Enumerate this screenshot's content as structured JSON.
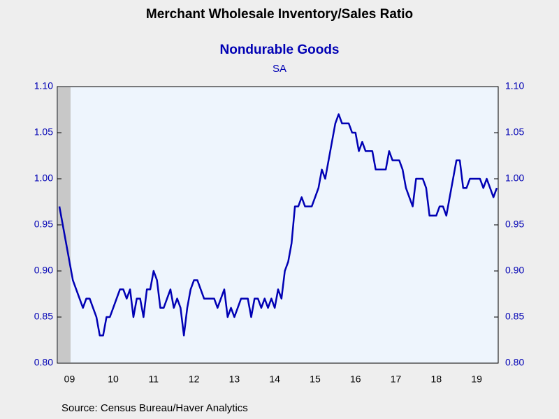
{
  "chart_data": {
    "type": "line",
    "title": "Merchant Wholesale Inventory/Sales Ratio",
    "subtitle": "Nondurable Goods",
    "note": "SA",
    "source": "Source:  Census Bureau/Haver Analytics",
    "color": "#0000b4",
    "categories": [
      null,
      null,
      null,
      "09",
      null,
      null,
      null,
      null,
      null,
      null,
      null,
      null,
      null,
      null,
      null,
      null,
      "10",
      null,
      null,
      null,
      null,
      null,
      null,
      null,
      null,
      null,
      null,
      null,
      "11",
      null,
      null,
      null,
      null,
      null,
      null,
      null,
      null,
      null,
      null,
      null,
      "12",
      null,
      null,
      null,
      null,
      null,
      null,
      null,
      null,
      null,
      null,
      null,
      "13",
      null,
      null,
      null,
      null,
      null,
      null,
      null,
      null,
      null,
      null,
      null,
      "14",
      null,
      null,
      null,
      null,
      null,
      null,
      null,
      null,
      null,
      null,
      null,
      "15",
      null,
      null,
      null,
      null,
      null,
      null,
      null,
      null,
      null,
      null,
      null,
      "16",
      null,
      null,
      null,
      null,
      null,
      null,
      null,
      null,
      null,
      null,
      null,
      "17",
      null,
      null,
      null,
      null,
      null,
      null,
      null,
      null,
      null,
      null,
      null,
      "18",
      null,
      null,
      null,
      null,
      null,
      null,
      null,
      null,
      null,
      null,
      null,
      "19",
      null,
      null,
      null,
      null,
      null,
      null
    ],
    "values": [
      0.97,
      0.95,
      0.93,
      0.91,
      0.89,
      0.88,
      0.87,
      0.86,
      0.87,
      0.87,
      0.86,
      0.85,
      0.83,
      0.83,
      0.85,
      0.85,
      0.86,
      0.87,
      0.88,
      0.88,
      0.87,
      0.88,
      0.85,
      0.87,
      0.87,
      0.85,
      0.88,
      0.88,
      0.9,
      0.89,
      0.86,
      0.86,
      0.87,
      0.88,
      0.86,
      0.87,
      0.86,
      0.83,
      0.86,
      0.88,
      0.89,
      0.89,
      0.88,
      0.87,
      0.87,
      0.87,
      0.87,
      0.86,
      0.87,
      0.88,
      0.85,
      0.86,
      0.85,
      0.86,
      0.87,
      0.87,
      0.87,
      0.85,
      0.87,
      0.87,
      0.86,
      0.87,
      0.86,
      0.87,
      0.86,
      0.88,
      0.87,
      0.9,
      0.91,
      0.93,
      0.97,
      0.97,
      0.98,
      0.97,
      0.97,
      0.97,
      0.98,
      0.99,
      1.01,
      1.0,
      1.02,
      1.04,
      1.06,
      1.07,
      1.06,
      1.06,
      1.06,
      1.05,
      1.05,
      1.03,
      1.04,
      1.03,
      1.03,
      1.03,
      1.01,
      1.01,
      1.01,
      1.01,
      1.03,
      1.02,
      1.02,
      1.02,
      1.01,
      0.99,
      0.98,
      0.97,
      1.0,
      1.0,
      1.0,
      0.99,
      0.96,
      0.96,
      0.96,
      0.97,
      0.97,
      0.96,
      0.98,
      1.0,
      1.02,
      1.02,
      0.99,
      0.99,
      1.0,
      1.0,
      1.0,
      1.0,
      0.99,
      1.0,
      0.99,
      0.98,
      0.99
    ],
    "ylim": [
      0.8,
      1.1
    ],
    "yticks": [
      {
        "value": 0.8,
        "label": "0.80"
      },
      {
        "value": 0.85,
        "label": "0.85"
      },
      {
        "value": 0.9,
        "label": "0.90"
      },
      {
        "value": 0.95,
        "label": "0.95"
      },
      {
        "value": 1.0,
        "label": "1.00"
      },
      {
        "value": 1.05,
        "label": "1.05"
      },
      {
        "value": 1.1,
        "label": "1.10"
      }
    ]
  }
}
